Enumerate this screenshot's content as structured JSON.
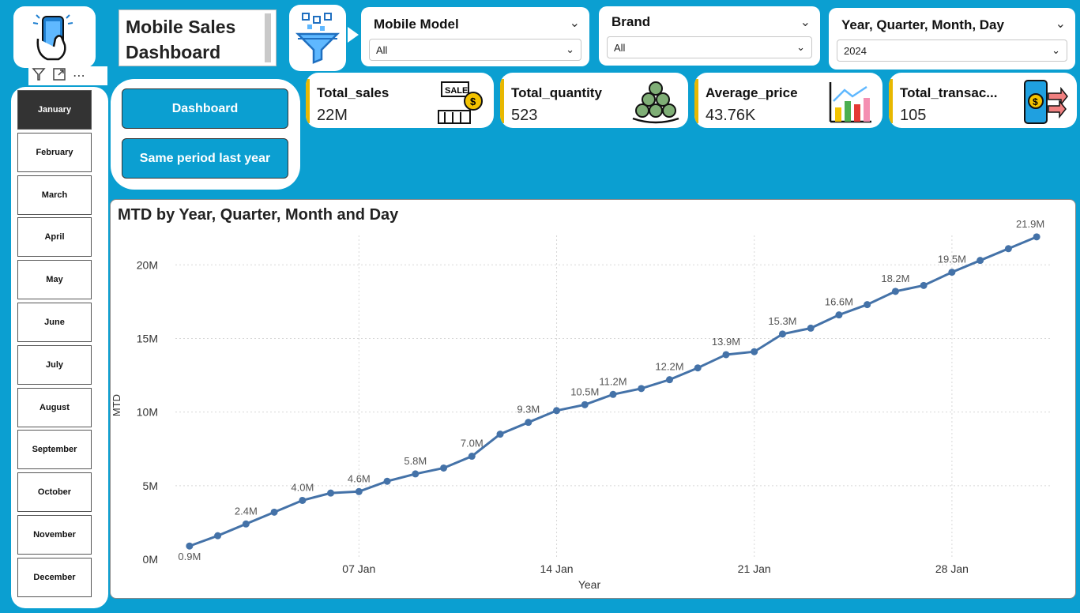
{
  "header": {
    "title_line1": "Mobile Sales",
    "title_line2": "Dashboard"
  },
  "slicers": {
    "model": {
      "label": "Mobile Model",
      "value": "All"
    },
    "brand": {
      "label": "Brand",
      "value": "All"
    },
    "date": {
      "label": "Year, Quarter, Month, Day",
      "value": "2024"
    }
  },
  "nav": {
    "dashboard": "Dashboard",
    "same_period": "Same period last year"
  },
  "kpis": [
    {
      "name": "Total_sales",
      "value": "22M",
      "icon": "sale-icon"
    },
    {
      "name": "Total_quantity",
      "value": "523",
      "icon": "coins-icon"
    },
    {
      "name": "Average_price",
      "value": "43.76K",
      "icon": "bar-chart-icon"
    },
    {
      "name": "Total_transac...",
      "value": "105",
      "icon": "phone-payment-icon"
    }
  ],
  "months": [
    "January",
    "February",
    "March",
    "April",
    "May",
    "June",
    "July",
    "August",
    "September",
    "October",
    "November",
    "December"
  ],
  "selected_month": "January",
  "colors": {
    "background": "#0b9fd1",
    "line": "#4472a8",
    "accent": "#e8b800"
  },
  "chart_data": {
    "type": "line",
    "title": "MTD by Year, Quarter, Month and Day",
    "xlabel": "Year",
    "ylabel": "MTD",
    "ylim": [
      0,
      22000000
    ],
    "yticks": [
      {
        "v": 0,
        "label": "0M"
      },
      {
        "v": 5000000,
        "label": "5M"
      },
      {
        "v": 10000000,
        "label": "10M"
      },
      {
        "v": 15000000,
        "label": "15M"
      },
      {
        "v": 20000000,
        "label": "20M"
      }
    ],
    "xticks": [
      {
        "day": 7,
        "label": "07 Jan"
      },
      {
        "day": 14,
        "label": "14 Jan"
      },
      {
        "day": 21,
        "label": "21 Jan"
      },
      {
        "day": 28,
        "label": "28 Jan"
      }
    ],
    "x": [
      1,
      2,
      3,
      4,
      5,
      6,
      7,
      8,
      9,
      10,
      11,
      12,
      13,
      14,
      15,
      16,
      17,
      18,
      19,
      20,
      21,
      22,
      23,
      24,
      25,
      26,
      27,
      28,
      29,
      30,
      31
    ],
    "values": [
      0.9,
      1.6,
      2.4,
      3.2,
      4.0,
      4.5,
      4.6,
      5.3,
      5.8,
      6.2,
      7.0,
      8.5,
      9.3,
      10.1,
      10.5,
      11.2,
      11.6,
      12.2,
      13.0,
      13.9,
      14.1,
      15.3,
      15.7,
      16.6,
      17.3,
      18.2,
      18.6,
      19.5,
      20.3,
      21.1,
      21.9
    ],
    "data_labels": [
      {
        "i": 0,
        "label": "0.9M"
      },
      {
        "i": 2,
        "label": "2.4M"
      },
      {
        "i": 4,
        "label": "4.0M"
      },
      {
        "i": 6,
        "label": "4.6M"
      },
      {
        "i": 8,
        "label": "5.8M"
      },
      {
        "i": 10,
        "label": "7.0M"
      },
      {
        "i": 12,
        "label": "9.3M"
      },
      {
        "i": 14,
        "label": "10.5M"
      },
      {
        "i": 15,
        "label": "11.2M"
      },
      {
        "i": 17,
        "label": "12.2M"
      },
      {
        "i": 19,
        "label": "13.9M"
      },
      {
        "i": 21,
        "label": "15.3M"
      },
      {
        "i": 23,
        "label": "16.6M"
      },
      {
        "i": 25,
        "label": "18.2M"
      },
      {
        "i": 27,
        "label": "19.5M"
      },
      {
        "i": 30,
        "label": "21.9M"
      }
    ],
    "grid": true
  }
}
